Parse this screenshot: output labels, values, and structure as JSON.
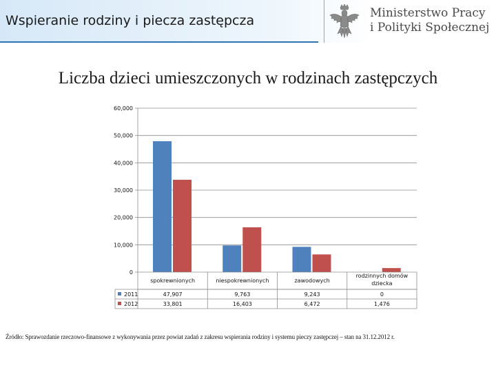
{
  "header": {
    "title": "Wspieranie rodziny i piecza zastępcza",
    "ministry_line1": "Ministerstwo Pracy",
    "ministry_line2": "i Polityki Społecznej",
    "accent_color": "#2e74b5"
  },
  "slide_title": "Liczba dzieci umieszczonych w rodzinach zastępczych",
  "chart_data": {
    "type": "bar",
    "categories": [
      "spokrewnionych",
      "niespokrewnionych",
      "zawodowych",
      "rodzinnych domów dziecka"
    ],
    "category_lines": [
      [
        "spokrewnionych"
      ],
      [
        "niespokrewnionych"
      ],
      [
        "zawodowych"
      ],
      [
        "rodzinnych domów",
        "dziecka"
      ]
    ],
    "series": [
      {
        "name": "2011",
        "values": [
          47907,
          9763,
          9243,
          0
        ],
        "value_labels": [
          "47,907",
          "9,763",
          "9,243",
          "0"
        ],
        "color": "#4f81bd"
      },
      {
        "name": "2012",
        "values": [
          33801,
          16403,
          6472,
          1476
        ],
        "value_labels": [
          "33,801",
          "16,403",
          "6,472",
          "1,476"
        ],
        "color": "#c0504d"
      }
    ],
    "ylim": [
      0,
      60000
    ],
    "yticks": [
      0,
      10000,
      20000,
      30000,
      40000,
      50000,
      60000
    ],
    "ytick_labels": [
      "0",
      "10,000",
      "20,000",
      "30,000",
      "40,000",
      "50,000",
      "60,000"
    ],
    "grid": true,
    "legend": "data-table"
  },
  "source": "Źródło: Sprawozdanie rzeczowo-finansowe z wykonywania przez powiat zadań z zakresu wspierania rodziny i systemu pieczy zastępczej – stan na 31.12.2012 r."
}
